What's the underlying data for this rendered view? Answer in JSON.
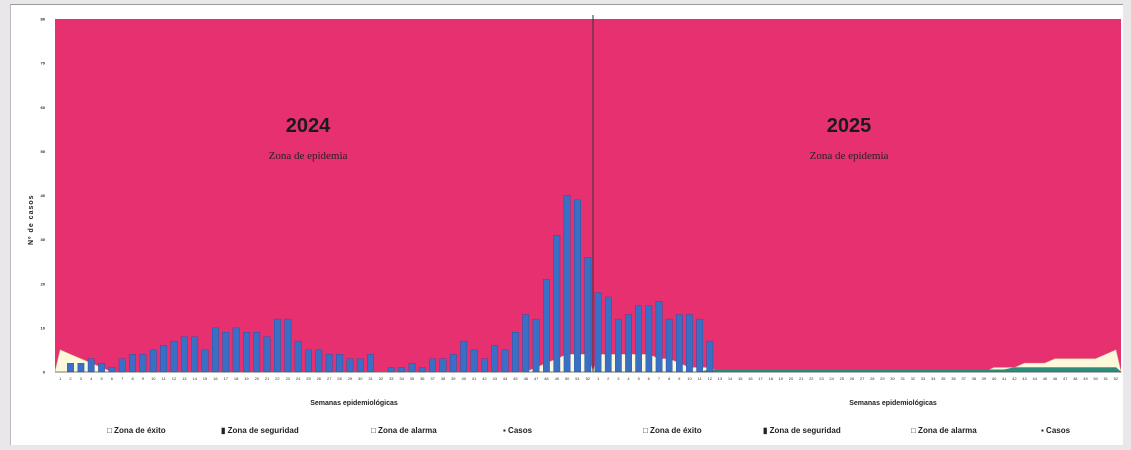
{
  "chart_data": [
    {
      "type": "bar",
      "title": "2024",
      "subtitle": "Zona de epidemia",
      "xlabel": "Semanas epidemiológicas",
      "ylabel": "Nº de casos",
      "ylim": [
        0,
        80
      ],
      "weeks": 52,
      "series": [
        {
          "name": "Casos",
          "color": "#3a6fc6",
          "values": [
            0,
            2,
            2,
            3,
            2,
            1,
            3,
            4,
            4,
            5,
            6,
            7,
            8,
            8,
            5,
            10,
            9,
            10,
            9,
            9,
            8,
            12,
            12,
            7,
            5,
            5,
            4,
            4,
            3,
            3,
            4,
            0,
            1,
            1,
            2,
            1,
            3,
            3,
            4,
            7,
            5,
            3,
            6,
            5,
            9,
            13,
            12,
            21,
            31,
            40,
            39,
            26
          ]
        },
        {
          "name": "Zona de éxito",
          "color": "#fbf8dc",
          "values": [
            5,
            4,
            3,
            2,
            1,
            0,
            0,
            0,
            0,
            0,
            0,
            0,
            0,
            0,
            0,
            0,
            0,
            0,
            0,
            0,
            0,
            0,
            0,
            0,
            0,
            0,
            0,
            0,
            0,
            0,
            0,
            0,
            0,
            0,
            0,
            0,
            0,
            0,
            0,
            0,
            0,
            0,
            0,
            0,
            0,
            0,
            1,
            2,
            3,
            4,
            4,
            4
          ]
        },
        {
          "name": "Zona de seguridad",
          "color": "#2e8b7a",
          "values": []
        },
        {
          "name": "Zona de alarma",
          "color": "#e8f0d8",
          "values": []
        },
        {
          "name": "Zona de epidemia",
          "color": "#e7306f",
          "values": []
        }
      ]
    },
    {
      "type": "bar",
      "title": "2025",
      "subtitle": "Zona de epidemia",
      "xlabel": "Semanas epidemiológicas",
      "ylim": [
        0,
        80
      ],
      "weeks": 52,
      "series": [
        {
          "name": "Casos",
          "color": "#3a6fc6",
          "values": [
            18,
            17,
            12,
            13,
            15,
            15,
            16,
            12,
            13,
            13,
            12,
            7,
            0,
            0,
            0,
            0,
            0,
            0,
            0,
            0,
            0,
            0,
            0,
            0,
            0,
            0,
            0,
            0,
            0,
            0,
            0,
            0,
            0,
            0,
            0,
            0,
            0,
            0,
            0,
            0,
            0,
            0,
            0,
            0,
            0,
            0,
            0,
            0,
            0,
            0,
            0,
            0
          ]
        },
        {
          "name": "Zona de éxito",
          "color": "#fbf8dc",
          "values": [
            4,
            4,
            4,
            4,
            4,
            4,
            3,
            3,
            2,
            1,
            1,
            1,
            0,
            0,
            0,
            0,
            0,
            0,
            0,
            0,
            0,
            0,
            0,
            0,
            0,
            0,
            0,
            0,
            0,
            0,
            0,
            0,
            0,
            0,
            0,
            0,
            0,
            0,
            0,
            1,
            1,
            1,
            2,
            2,
            2,
            3,
            3,
            3,
            3,
            3,
            4,
            5
          ]
        },
        {
          "name": "Zona de seguridad",
          "color": "#2e8b7a",
          "values": [
            0,
            0,
            0,
            0,
            0,
            0,
            0,
            0,
            0,
            0,
            0,
            0.5,
            0.5,
            0.5,
            0.5,
            0.5,
            0.5,
            0.5,
            0.5,
            0.5,
            0.5,
            0.5,
            0.5,
            0.5,
            0.5,
            0.5,
            0.5,
            0.5,
            0.5,
            0.5,
            0.5,
            0.5,
            0.5,
            0.5,
            0.5,
            0.5,
            0.5,
            0.5,
            0.5,
            0.5,
            0.5,
            1,
            1,
            1,
            1,
            1,
            1,
            1,
            1,
            1,
            1,
            1
          ]
        },
        {
          "name": "Zona de alarma",
          "color": "#e8f0d8",
          "values": []
        },
        {
          "name": "Zona de epidemia",
          "color": "#e7306f",
          "values": []
        }
      ]
    }
  ],
  "legends": [
    [
      {
        "marker": "□",
        "label": "Zona de éxito"
      },
      {
        "marker": "▮",
        "label": "Zona de seguridad"
      },
      {
        "marker": "□",
        "label": "Zona de alarma"
      },
      {
        "marker": "▪",
        "label": "Casos"
      }
    ],
    [
      {
        "marker": "□",
        "label": "Zona de éxito"
      },
      {
        "marker": "▮",
        "label": "Zona de seguridad"
      },
      {
        "marker": "□",
        "label": "Zona de alarma"
      },
      {
        "marker": "▪",
        "label": "Casos"
      }
    ]
  ],
  "y_ticks": [
    "0",
    "10",
    "20",
    "30",
    "40",
    "50",
    "60",
    "70",
    "80"
  ]
}
